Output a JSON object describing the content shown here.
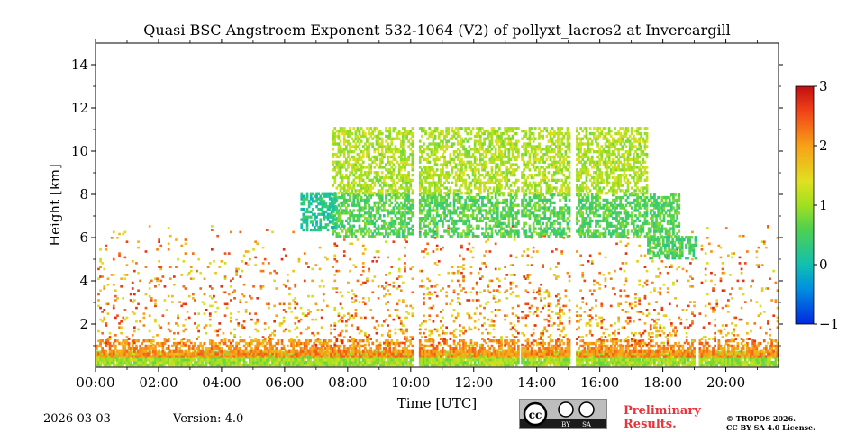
{
  "chart_data": {
    "type": "heatmap",
    "title": "Quasi BSC Angstroem Exponent 532-1064 (V2) of pollyxt_lacros2 at Invercargill",
    "xlabel": "Time [UTC]",
    "ylabel": "Height [km]",
    "xlim_hours": [
      0,
      21.67
    ],
    "ylim_km": [
      0,
      15
    ],
    "xticks": [
      0,
      2,
      4,
      6,
      8,
      10,
      12,
      14,
      16,
      18,
      20
    ],
    "xtick_labels": [
      "00:00",
      "02:00",
      "04:00",
      "06:00",
      "08:00",
      "10:00",
      "12:00",
      "14:00",
      "16:00",
      "18:00",
      "20:00"
    ],
    "yticks": [
      2,
      4,
      6,
      8,
      10,
      12,
      14
    ],
    "ytick_labels": [
      "2",
      "4",
      "6",
      "8",
      "10",
      "12",
      "14"
    ],
    "colorbar": {
      "min": -1,
      "max": 3,
      "ticks": [
        -1,
        0,
        1,
        2,
        3
      ],
      "tick_labels": [
        "−1",
        "0",
        "1",
        "2",
        "3"
      ],
      "colormap": "jet"
    },
    "data_gaps_hours": [
      [
        10.05,
        10.22
      ],
      [
        13.4,
        13.5
      ],
      [
        15.05,
        15.22
      ],
      [
        19.0,
        19.12
      ]
    ],
    "features": [
      {
        "name": "near-surface layer",
        "t": [
          0,
          21.67
        ],
        "h": [
          0.05,
          0.7
        ],
        "value": 1.0
      },
      {
        "name": "boundary layer aerosol",
        "t": [
          0,
          21.67
        ],
        "h": [
          0.45,
          1.2
        ],
        "value": 2.1
      },
      {
        "name": "scattered lower troposphere signal",
        "t": [
          0,
          21.67
        ],
        "h": [
          1.0,
          6.5
        ],
        "value": 2.0
      },
      {
        "name": "main cloud layer",
        "t": [
          7.5,
          18.5
        ],
        "h": [
          6.0,
          8.0
        ],
        "value": 0.6
      },
      {
        "name": "upper cloud patches",
        "t": [
          7.5,
          17.5
        ],
        "h": [
          8.0,
          11.0
        ],
        "value": 1.1
      },
      {
        "name": "early cloud base",
        "t": [
          6.5,
          7.6
        ],
        "h": [
          6.3,
          8.0
        ],
        "value": 0.2
      },
      {
        "name": "late cloud layer",
        "t": [
          17.5,
          19.0
        ],
        "h": [
          5.0,
          6.0
        ],
        "value": 0.5
      }
    ]
  },
  "footer": {
    "date": "2026-03-03",
    "version": "Version: 4.0",
    "preliminary_line1": "Preliminary",
    "preliminary_line2": "Results.",
    "copyright_line1": "© TROPOS 2026.",
    "copyright_line2": "CC BY SA 4.0 License.",
    "license_badge": {
      "cc": "cc",
      "by": "BY",
      "sa": "SA"
    }
  },
  "colors": {
    "prelim": "#e8343a",
    "badge": "#1b1b1b"
  }
}
